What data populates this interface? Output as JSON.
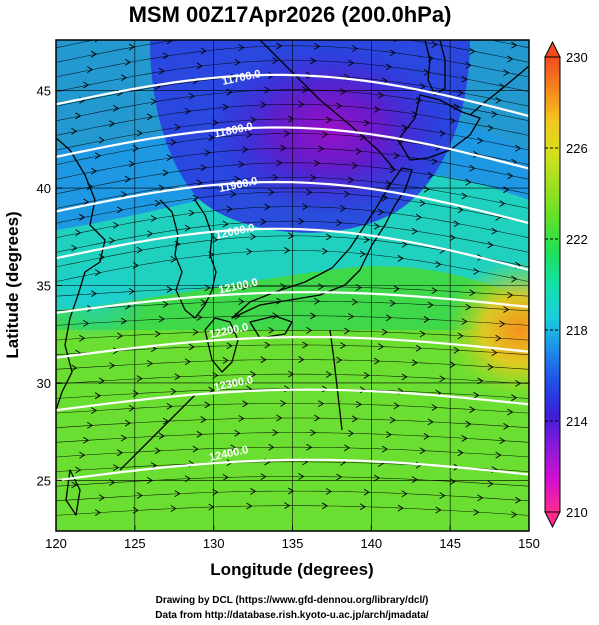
{
  "title": "MSM 00Z17Apr2026 (200.0hPa)",
  "map": {
    "xlabel": "Longitude (degrees)",
    "ylabel": "Latitude  (degrees)",
    "xlim": [
      120,
      150
    ],
    "ylim": [
      22.4,
      47.6
    ],
    "xticks": [
      "120",
      "125",
      "130",
      "135",
      "140",
      "145",
      "150"
    ],
    "xtick_values": [
      120,
      125,
      130,
      135,
      140,
      145,
      150
    ],
    "yticks": [
      "25",
      "30",
      "35",
      "40",
      "45"
    ],
    "ytick_values": [
      25,
      30,
      35,
      40,
      45
    ],
    "grid": true,
    "wind_direction": "westerly",
    "coastline_color": "#000000"
  },
  "contours": {
    "field": "geopotential height",
    "color": "#ffffff",
    "lines": [
      {
        "value": 11700,
        "label": "11700.0",
        "label_lon": 131.8,
        "label_lat": 45.5
      },
      {
        "value": 11800,
        "label": "11800.0",
        "label_lon": 131.3,
        "label_lat": 42.8
      },
      {
        "value": 11900,
        "label": "11900.0",
        "label_lon": 131.6,
        "label_lat": 40.0
      },
      {
        "value": 12000,
        "label": "12000.0",
        "label_lon": 131.4,
        "label_lat": 37.6
      },
      {
        "value": 12100,
        "label": "12100.0",
        "label_lon": 131.6,
        "label_lat": 34.8
      },
      {
        "value": 12200,
        "label": "12200.0",
        "label_lon": 131.0,
        "label_lat": 32.5
      },
      {
        "value": 12300,
        "label": "12300.0",
        "label_lon": 131.3,
        "label_lat": 29.8
      },
      {
        "value": 12400,
        "label": "12400.0",
        "label_lon": 131.0,
        "label_lat": 26.2
      }
    ]
  },
  "colorbar": {
    "field": "temperature",
    "min": 210,
    "max": 230,
    "labels": [
      "230",
      "226",
      "222",
      "218",
      "214",
      "210"
    ],
    "label_values": [
      230,
      226,
      222,
      218,
      214,
      210
    ],
    "colors": [
      "#ff2a8c",
      "#d40fd0",
      "#8a1ad8",
      "#3b1fd8",
      "#1f4fe6",
      "#1e8ee8",
      "#19cfdc",
      "#14e0a8",
      "#1ee05a",
      "#5ee02a",
      "#9ae01e",
      "#d2e01e",
      "#f2c81e",
      "#f7861e",
      "#f04a1e"
    ]
  },
  "credits": [
    "Drawing by DCL (https://www.gfd-dennou.org/library/dcl/)",
    "Data from http://database.rish.kyoto-u.ac.jp/arch/jmadata/"
  ]
}
